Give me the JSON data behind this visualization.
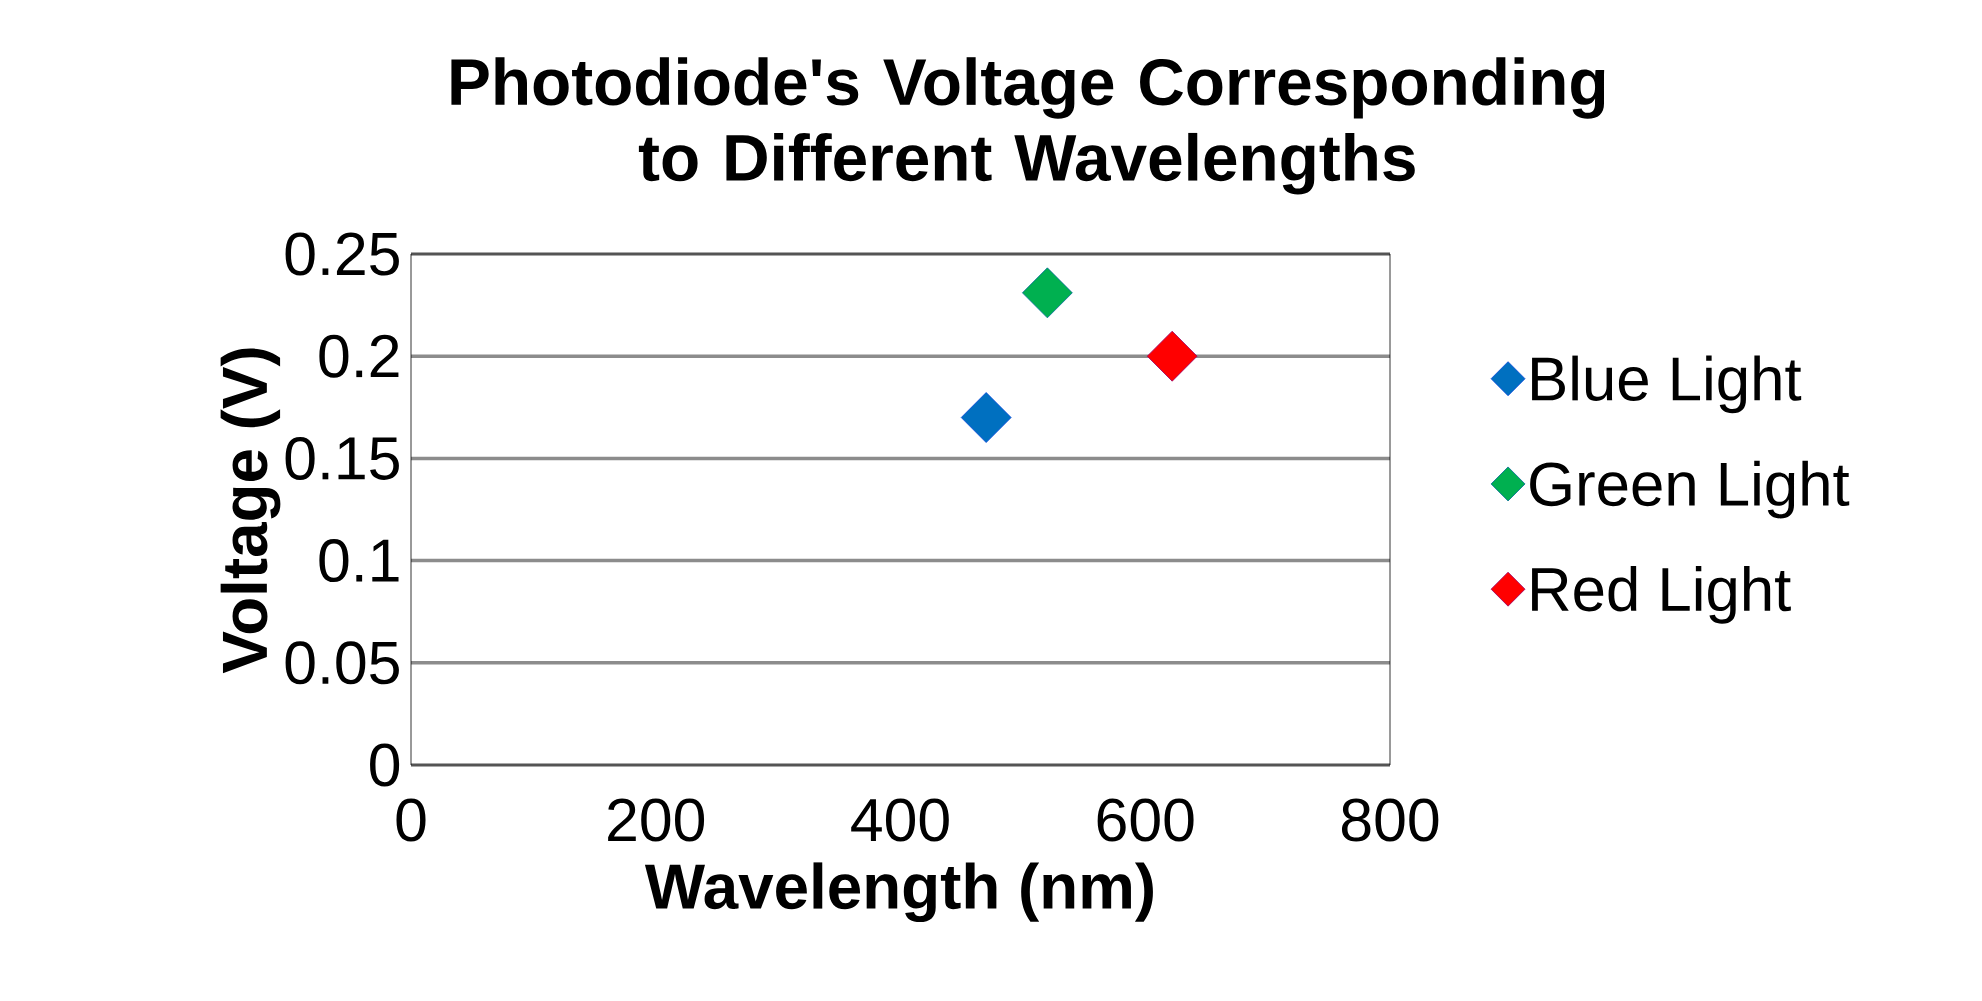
{
  "chart_data": {
    "type": "scatter",
    "title": "Photodiode's Voltage Corresponding to Different Wavelengths",
    "xlabel": "Wavelength (nm)",
    "ylabel": "Voltage (V)",
    "series": [
      {
        "name": "Blue Light",
        "color": "#0070c0",
        "x": [
          470
        ],
        "values": [
          0.17
        ]
      },
      {
        "name": "Green Light",
        "color": "#00b050",
        "x": [
          520
        ],
        "values": [
          0.231
        ]
      },
      {
        "name": "Red Light",
        "color": "#ff0000",
        "x": [
          622
        ],
        "values": [
          0.2
        ]
      }
    ],
    "xlim": [
      0,
      800
    ],
    "xticks": [
      0,
      200,
      400,
      600,
      800
    ],
    "ylim": [
      0,
      0.25
    ],
    "yticks": [
      0,
      0.05,
      0.1,
      0.15,
      0.2,
      0.25
    ],
    "grid": "y",
    "legend": "right",
    "marker": "diamond"
  }
}
